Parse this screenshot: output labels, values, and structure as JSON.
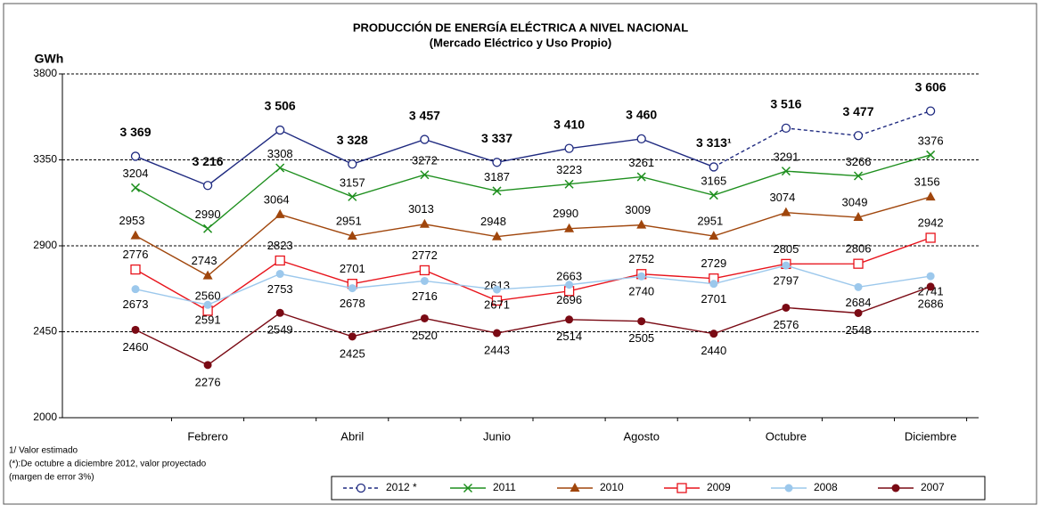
{
  "chart_data": {
    "type": "line",
    "title": "PRODUCCIÓN DE ENERGÍA ELÉCTRICA A NIVEL NACIONAL",
    "subtitle": "(Mercado Eléctrico y Uso Propio)",
    "y_label": "GWh",
    "categories": [
      null,
      "Febrero",
      null,
      "Abril",
      null,
      "Junio",
      null,
      "Agosto",
      null,
      "Octubre",
      null,
      "Diciembre"
    ],
    "ylim": [
      2000,
      3800
    ],
    "yticks": [
      2000,
      2450,
      2900,
      3350,
      3800
    ],
    "grid": true,
    "notes": [
      "1/  Valor estimado",
      "(*):De octubre a diciembre 2012, valor proyectado",
      "(margen de error 3%)"
    ],
    "series": [
      {
        "name": "2012 *",
        "color": "#1f2a80",
        "marker": "open-circle",
        "dashed_from": 8,
        "projected_label_color": "#2e8b22",
        "values": [
          3369,
          3216,
          3506,
          3328,
          3457,
          3337,
          3410,
          3460,
          3313,
          3516,
          3477,
          3606
        ],
        "value_labels": [
          "3 369",
          "3 216",
          "3 506",
          "3 328",
          "3 457",
          "3 337",
          "3 410",
          "3 460",
          "3 313¹",
          "3 516",
          "3 477",
          "3 606"
        ]
      },
      {
        "name": "2011",
        "color": "#1e8f1e",
        "marker": "x",
        "values": [
          3204,
          2990,
          3308,
          3157,
          3272,
          3187,
          3223,
          3261,
          3165,
          3291,
          3266,
          3376
        ]
      },
      {
        "name": "2010",
        "color": "#a0460c",
        "marker": "triangle",
        "values": [
          2953,
          2743,
          3064,
          2951,
          3013,
          2948,
          2990,
          3009,
          2951,
          3074,
          3049,
          3156
        ]
      },
      {
        "name": "2009",
        "color": "#e8141c",
        "marker": "open-square",
        "values": [
          2776,
          2560,
          2823,
          2701,
          2772,
          2613,
          2663,
          2752,
          2729,
          2805,
          2806,
          2942
        ]
      },
      {
        "name": "2008",
        "color": "#9cc8ec",
        "marker": "circle",
        "values": [
          2673,
          2591,
          2753,
          2678,
          2716,
          2671,
          2696,
          2740,
          2701,
          2797,
          2684,
          2741
        ]
      },
      {
        "name": "2007",
        "color": "#7a0a14",
        "marker": "circle",
        "values": [
          2460,
          2276,
          2549,
          2425,
          2520,
          2443,
          2514,
          2505,
          2440,
          2576,
          2548,
          2686
        ]
      }
    ]
  }
}
